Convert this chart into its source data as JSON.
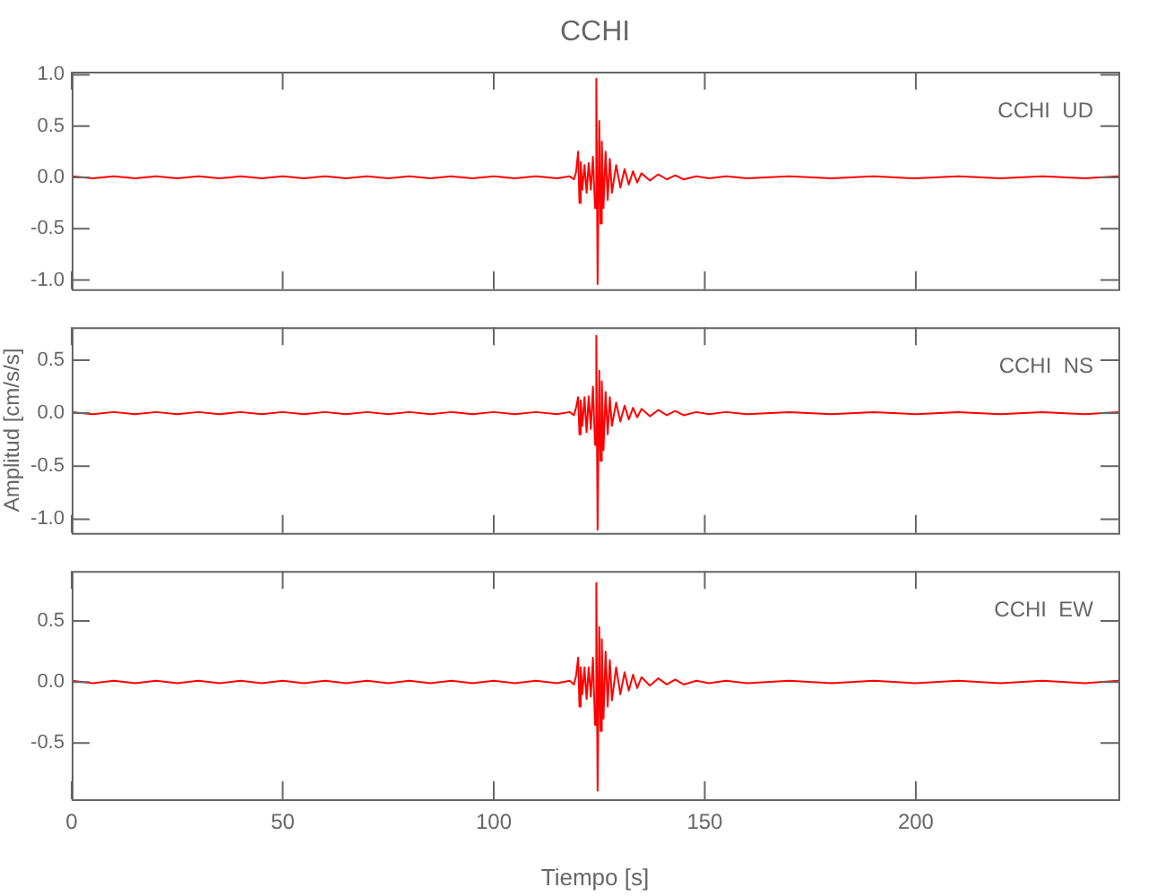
{
  "chart_data": [
    {
      "type": "line",
      "title": "CCHI",
      "annotations": [
        "CCHI  UD"
      ],
      "tick_labels": "y",
      "xlim": [
        0,
        248
      ],
      "xticks": [
        0,
        50,
        100,
        150,
        200
      ],
      "ylim": [
        -1.09,
        1.03
      ],
      "yticks": [
        {
          "value": -1,
          "label": "-1.0"
        },
        {
          "value": -0.5,
          "label": "-0.5"
        },
        {
          "value": 0,
          "label": "0.0"
        },
        {
          "value": 0.5,
          "label": "0.5"
        },
        {
          "value": 1,
          "label": "1.0"
        }
      ],
      "series": [
        {
          "color": "#ff0000",
          "x": [
            0,
            5,
            10,
            15,
            20,
            25,
            30,
            35,
            40,
            45,
            50,
            55,
            60,
            65,
            70,
            75,
            80,
            85,
            90,
            95,
            100,
            105,
            110,
            115,
            118,
            119,
            119.5,
            120,
            120.3,
            120.6,
            121,
            121.5,
            122,
            122.5,
            123,
            123.5,
            124,
            124.3,
            124.6,
            125,
            125.3,
            125.6,
            126,
            126.5,
            127,
            127.5,
            128,
            129,
            130,
            131,
            132,
            133,
            134,
            135,
            137,
            139,
            141,
            143,
            145,
            148,
            151,
            155,
            160,
            170,
            180,
            190,
            200,
            210,
            220,
            230,
            240,
            248
          ],
          "values": [
            0.01,
            -0.01,
            0.01,
            -0.01,
            0.01,
            -0.01,
            0.01,
            -0.01,
            0.01,
            -0.01,
            0.01,
            -0.01,
            0.01,
            -0.01,
            0.01,
            -0.01,
            0.01,
            -0.01,
            0.01,
            -0.01,
            0.01,
            -0.01,
            0.01,
            -0.01,
            0.01,
            -0.02,
            0.05,
            0.25,
            -0.25,
            0.15,
            -0.12,
            0.12,
            -0.15,
            0.14,
            -0.12,
            0.2,
            -0.3,
            0.96,
            -1.04,
            0.55,
            -0.45,
            0.35,
            -0.3,
            0.25,
            -0.22,
            0.18,
            -0.15,
            0.12,
            -0.1,
            0.08,
            -0.07,
            0.06,
            -0.05,
            0.04,
            -0.03,
            0.03,
            -0.02,
            0.02,
            -0.02,
            0.01,
            -0.01,
            0.01,
            -0.01,
            0.01,
            -0.01,
            0.01,
            -0.01,
            0.01,
            -0.01,
            0.01,
            -0.01,
            0.01
          ]
        }
      ]
    },
    {
      "type": "line",
      "ylabel": "Amplitud [cm/s/s]",
      "annotations": [
        "CCHI  NS"
      ],
      "tick_labels": "y",
      "xlim": [
        0,
        248
      ],
      "xticks": [
        0,
        50,
        100,
        150,
        200
      ],
      "ylim": [
        -1.13,
        0.81
      ],
      "yticks": [
        {
          "value": -1,
          "label": "-1.0"
        },
        {
          "value": -0.5,
          "label": "-0.5"
        },
        {
          "value": 0,
          "label": "0.0"
        },
        {
          "value": 0.5,
          "label": "0.5"
        }
      ],
      "series": [
        {
          "color": "#ff0000",
          "x": [
            0,
            5,
            10,
            15,
            20,
            25,
            30,
            35,
            40,
            45,
            50,
            55,
            60,
            65,
            70,
            75,
            80,
            85,
            90,
            95,
            100,
            105,
            110,
            115,
            118,
            119,
            119.5,
            120,
            120.3,
            120.6,
            121,
            121.5,
            122,
            122.5,
            123,
            123.5,
            124,
            124.3,
            124.6,
            125,
            125.3,
            125.6,
            126,
            126.5,
            127,
            127.5,
            128,
            129,
            130,
            131,
            132,
            133,
            134,
            135,
            137,
            139,
            141,
            143,
            145,
            148,
            151,
            155,
            160,
            170,
            180,
            190,
            200,
            210,
            220,
            230,
            240,
            248
          ],
          "values": [
            0.01,
            -0.01,
            0.01,
            -0.01,
            0.01,
            -0.01,
            0.01,
            -0.01,
            0.01,
            -0.01,
            0.01,
            -0.01,
            0.01,
            -0.01,
            0.01,
            -0.01,
            0.01,
            -0.01,
            0.01,
            -0.01,
            0.01,
            -0.01,
            0.01,
            -0.01,
            0.01,
            -0.02,
            0.05,
            0.15,
            -0.2,
            0.12,
            -0.12,
            0.15,
            -0.18,
            0.16,
            -0.15,
            0.25,
            -0.3,
            0.73,
            -1.1,
            0.4,
            -0.45,
            0.3,
            -0.35,
            0.2,
            -0.2,
            0.15,
            -0.12,
            0.1,
            -0.08,
            0.07,
            -0.06,
            0.05,
            -0.04,
            0.04,
            -0.03,
            0.03,
            -0.02,
            0.02,
            -0.02,
            0.01,
            -0.01,
            0.01,
            -0.01,
            0.01,
            -0.01,
            0.01,
            -0.01,
            0.01,
            -0.01,
            0.01,
            -0.01,
            0.01
          ]
        }
      ]
    },
    {
      "type": "line",
      "xlabel": "Tiempo [s]",
      "annotations": [
        "CCHI  EW"
      ],
      "xlim": [
        0,
        248
      ],
      "xticks": [
        0,
        50,
        100,
        150,
        200
      ],
      "ylim": [
        -0.96,
        0.91
      ],
      "yticks": [
        {
          "value": -0.5,
          "label": "-0.5"
        },
        {
          "value": 0,
          "label": "0.0"
        },
        {
          "value": 0.5,
          "label": "0.5"
        }
      ],
      "series": [
        {
          "color": "#ff0000",
          "x": [
            0,
            5,
            10,
            15,
            20,
            25,
            30,
            35,
            40,
            45,
            50,
            55,
            60,
            65,
            70,
            75,
            80,
            85,
            90,
            95,
            100,
            105,
            110,
            115,
            118,
            119,
            119.5,
            120,
            120.3,
            120.6,
            121,
            121.5,
            122,
            122.5,
            123,
            123.5,
            124,
            124.3,
            124.6,
            125,
            125.3,
            125.6,
            126,
            126.5,
            127,
            127.5,
            128,
            129,
            130,
            131,
            132,
            133,
            134,
            135,
            137,
            139,
            141,
            143,
            145,
            148,
            151,
            155,
            160,
            170,
            180,
            190,
            200,
            210,
            220,
            230,
            240,
            248
          ],
          "values": [
            0.01,
            -0.01,
            0.01,
            -0.01,
            0.01,
            -0.01,
            0.01,
            -0.01,
            0.01,
            -0.01,
            0.01,
            -0.01,
            0.01,
            -0.01,
            0.01,
            -0.01,
            0.01,
            -0.01,
            0.01,
            -0.01,
            0.01,
            -0.01,
            0.01,
            -0.01,
            0.01,
            -0.02,
            0.05,
            0.2,
            -0.2,
            0.12,
            -0.1,
            0.12,
            -0.14,
            0.12,
            -0.12,
            0.2,
            -0.35,
            0.81,
            -0.89,
            0.45,
            -0.4,
            0.35,
            -0.3,
            0.25,
            -0.2,
            0.18,
            -0.15,
            0.12,
            -0.1,
            0.08,
            -0.07,
            0.06,
            -0.05,
            0.04,
            -0.03,
            0.03,
            -0.02,
            0.02,
            -0.02,
            0.01,
            -0.01,
            0.01,
            -0.01,
            0.01,
            -0.01,
            0.01,
            -0.01,
            0.01,
            -0.01,
            0.01,
            -0.01,
            0.01
          ]
        }
      ]
    }
  ]
}
